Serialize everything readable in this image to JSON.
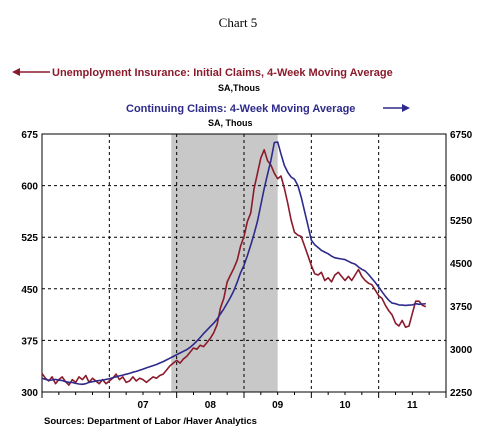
{
  "chart_data": {
    "type": "line",
    "title": "Chart 5",
    "x_tick_labels": [
      "07",
      "08",
      "09",
      "10",
      "11"
    ],
    "left_axis": {
      "ticks": [
        300,
        375,
        450,
        525,
        600,
        675
      ],
      "ylim": [
        300,
        675
      ]
    },
    "right_axis": {
      "ticks": [
        2250,
        3000,
        3750,
        4500,
        5250,
        6000,
        6750
      ],
      "ylim": [
        2250,
        6750
      ]
    },
    "recession_shading": {
      "start": 2007.92,
      "end": 2009.5,
      "color": "#c8c8c8"
    },
    "grid": "dashed",
    "source": "Sources:  Department of Labor /Haver Analytics",
    "series": [
      {
        "name": "Unemployment Insurance: Initial Claims, 4-Week Moving Average",
        "unit": "SA,Thous",
        "axis": "left",
        "arrow": "left",
        "color": "#8b1a2b",
        "points": [
          [
            2006.0,
            327
          ],
          [
            2006.05,
            320
          ],
          [
            2006.1,
            316
          ],
          [
            2006.15,
            322
          ],
          [
            2006.2,
            312
          ],
          [
            2006.25,
            318
          ],
          [
            2006.3,
            322
          ],
          [
            2006.35,
            315
          ],
          [
            2006.4,
            310
          ],
          [
            2006.45,
            318
          ],
          [
            2006.5,
            314
          ],
          [
            2006.55,
            322
          ],
          [
            2006.6,
            318
          ],
          [
            2006.65,
            324
          ],
          [
            2006.7,
            314
          ],
          [
            2006.75,
            320
          ],
          [
            2006.8,
            316
          ],
          [
            2006.85,
            312
          ],
          [
            2006.9,
            318
          ],
          [
            2006.95,
            312
          ],
          [
            2007.0,
            316
          ],
          [
            2007.05,
            320
          ],
          [
            2007.1,
            326
          ],
          [
            2007.15,
            318
          ],
          [
            2007.2,
            322
          ],
          [
            2007.25,
            314
          ],
          [
            2007.3,
            316
          ],
          [
            2007.35,
            322
          ],
          [
            2007.4,
            316
          ],
          [
            2007.45,
            320
          ],
          [
            2007.5,
            318
          ],
          [
            2007.55,
            314
          ],
          [
            2007.6,
            318
          ],
          [
            2007.65,
            322
          ],
          [
            2007.7,
            320
          ],
          [
            2007.75,
            324
          ],
          [
            2007.8,
            326
          ],
          [
            2007.85,
            332
          ],
          [
            2007.9,
            338
          ],
          [
            2007.95,
            342
          ],
          [
            2008.0,
            346
          ],
          [
            2008.05,
            342
          ],
          [
            2008.1,
            348
          ],
          [
            2008.15,
            352
          ],
          [
            2008.2,
            358
          ],
          [
            2008.25,
            364
          ],
          [
            2008.3,
            362
          ],
          [
            2008.35,
            368
          ],
          [
            2008.4,
            366
          ],
          [
            2008.45,
            372
          ],
          [
            2008.5,
            378
          ],
          [
            2008.55,
            386
          ],
          [
            2008.6,
            398
          ],
          [
            2008.65,
            422
          ],
          [
            2008.7,
            436
          ],
          [
            2008.75,
            460
          ],
          [
            2008.8,
            470
          ],
          [
            2008.85,
            480
          ],
          [
            2008.9,
            492
          ],
          [
            2008.95,
            512
          ],
          [
            2009.0,
            526
          ],
          [
            2009.05,
            548
          ],
          [
            2009.1,
            560
          ],
          [
            2009.15,
            596
          ],
          [
            2009.2,
            618
          ],
          [
            2009.25,
            640
          ],
          [
            2009.3,
            652
          ],
          [
            2009.35,
            636
          ],
          [
            2009.4,
            630
          ],
          [
            2009.45,
            618
          ],
          [
            2009.5,
            610
          ],
          [
            2009.55,
            614
          ],
          [
            2009.6,
            596
          ],
          [
            2009.65,
            574
          ],
          [
            2009.7,
            550
          ],
          [
            2009.75,
            532
          ],
          [
            2009.8,
            528
          ],
          [
            2009.85,
            526
          ],
          [
            2009.9,
            512
          ],
          [
            2009.95,
            498
          ],
          [
            2010.0,
            484
          ],
          [
            2010.05,
            472
          ],
          [
            2010.1,
            470
          ],
          [
            2010.15,
            474
          ],
          [
            2010.2,
            462
          ],
          [
            2010.25,
            466
          ],
          [
            2010.3,
            460
          ],
          [
            2010.35,
            470
          ],
          [
            2010.4,
            474
          ],
          [
            2010.45,
            468
          ],
          [
            2010.5,
            462
          ],
          [
            2010.55,
            468
          ],
          [
            2010.6,
            462
          ],
          [
            2010.65,
            470
          ],
          [
            2010.7,
            478
          ],
          [
            2010.75,
            468
          ],
          [
            2010.8,
            462
          ],
          [
            2010.85,
            458
          ],
          [
            2010.9,
            456
          ],
          [
            2010.95,
            448
          ],
          [
            2011.0,
            440
          ],
          [
            2011.05,
            436
          ],
          [
            2011.1,
            426
          ],
          [
            2011.15,
            418
          ],
          [
            2011.2,
            412
          ],
          [
            2011.25,
            400
          ],
          [
            2011.3,
            396
          ],
          [
            2011.35,
            404
          ],
          [
            2011.4,
            394
          ],
          [
            2011.45,
            396
          ],
          [
            2011.5,
            414
          ],
          [
            2011.55,
            432
          ],
          [
            2011.6,
            432
          ],
          [
            2011.65,
            426
          ],
          [
            2011.7,
            424
          ]
        ]
      },
      {
        "name": "Continuing Claims: 4-Week Moving Average",
        "unit": "SA, Thous",
        "axis": "right",
        "arrow": "right",
        "color": "#2e2a8c",
        "points": [
          [
            2006.0,
            2490
          ],
          [
            2006.05,
            2470
          ],
          [
            2006.1,
            2455
          ],
          [
            2006.15,
            2460
          ],
          [
            2006.2,
            2470
          ],
          [
            2006.25,
            2455
          ],
          [
            2006.3,
            2450
          ],
          [
            2006.35,
            2430
          ],
          [
            2006.4,
            2420
          ],
          [
            2006.45,
            2415
          ],
          [
            2006.5,
            2400
          ],
          [
            2006.55,
            2390
          ],
          [
            2006.6,
            2385
          ],
          [
            2006.65,
            2395
          ],
          [
            2006.7,
            2420
          ],
          [
            2006.75,
            2430
          ],
          [
            2006.8,
            2440
          ],
          [
            2006.85,
            2450
          ],
          [
            2006.9,
            2455
          ],
          [
            2006.95,
            2470
          ],
          [
            2007.0,
            2480
          ],
          [
            2007.05,
            2500
          ],
          [
            2007.1,
            2515
          ],
          [
            2007.15,
            2530
          ],
          [
            2007.2,
            2545
          ],
          [
            2007.25,
            2560
          ],
          [
            2007.3,
            2575
          ],
          [
            2007.35,
            2595
          ],
          [
            2007.4,
            2610
          ],
          [
            2007.45,
            2630
          ],
          [
            2007.5,
            2650
          ],
          [
            2007.55,
            2670
          ],
          [
            2007.6,
            2690
          ],
          [
            2007.65,
            2710
          ],
          [
            2007.7,
            2730
          ],
          [
            2007.75,
            2755
          ],
          [
            2007.8,
            2780
          ],
          [
            2007.85,
            2810
          ],
          [
            2007.9,
            2840
          ],
          [
            2007.95,
            2870
          ],
          [
            2008.0,
            2900
          ],
          [
            2008.05,
            2930
          ],
          [
            2008.1,
            2960
          ],
          [
            2008.15,
            2990
          ],
          [
            2008.2,
            3030
          ],
          [
            2008.25,
            3080
          ],
          [
            2008.3,
            3140
          ],
          [
            2008.35,
            3200
          ],
          [
            2008.4,
            3270
          ],
          [
            2008.45,
            3330
          ],
          [
            2008.5,
            3390
          ],
          [
            2008.55,
            3450
          ],
          [
            2008.6,
            3520
          ],
          [
            2008.65,
            3610
          ],
          [
            2008.7,
            3700
          ],
          [
            2008.75,
            3800
          ],
          [
            2008.8,
            3900
          ],
          [
            2008.85,
            4020
          ],
          [
            2008.9,
            4170
          ],
          [
            2008.95,
            4330
          ],
          [
            2009.0,
            4460
          ],
          [
            2009.05,
            4630
          ],
          [
            2009.1,
            4810
          ],
          [
            2009.15,
            5010
          ],
          [
            2009.2,
            5230
          ],
          [
            2009.25,
            5510
          ],
          [
            2009.3,
            5800
          ],
          [
            2009.35,
            6050
          ],
          [
            2009.4,
            6290
          ],
          [
            2009.45,
            6600
          ],
          [
            2009.5,
            6610
          ],
          [
            2009.55,
            6400
          ],
          [
            2009.6,
            6200
          ],
          [
            2009.65,
            6080
          ],
          [
            2009.7,
            6000
          ],
          [
            2009.75,
            5960
          ],
          [
            2009.8,
            5850
          ],
          [
            2009.85,
            5650
          ],
          [
            2009.9,
            5400
          ],
          [
            2009.95,
            5150
          ],
          [
            2010.0,
            4900
          ],
          [
            2010.05,
            4820
          ],
          [
            2010.1,
            4770
          ],
          [
            2010.15,
            4720
          ],
          [
            2010.2,
            4690
          ],
          [
            2010.25,
            4660
          ],
          [
            2010.3,
            4620
          ],
          [
            2010.35,
            4590
          ],
          [
            2010.4,
            4580
          ],
          [
            2010.45,
            4570
          ],
          [
            2010.5,
            4560
          ],
          [
            2010.55,
            4530
          ],
          [
            2010.6,
            4500
          ],
          [
            2010.65,
            4480
          ],
          [
            2010.7,
            4430
          ],
          [
            2010.75,
            4390
          ],
          [
            2010.8,
            4360
          ],
          [
            2010.85,
            4300
          ],
          [
            2010.9,
            4230
          ],
          [
            2010.95,
            4160
          ],
          [
            2011.0,
            4080
          ],
          [
            2011.05,
            4000
          ],
          [
            2011.1,
            3920
          ],
          [
            2011.15,
            3850
          ],
          [
            2011.2,
            3800
          ],
          [
            2011.25,
            3790
          ],
          [
            2011.3,
            3770
          ],
          [
            2011.35,
            3765
          ],
          [
            2011.4,
            3760
          ],
          [
            2011.45,
            3765
          ],
          [
            2011.5,
            3770
          ],
          [
            2011.55,
            3790
          ],
          [
            2011.6,
            3780
          ],
          [
            2011.65,
            3785
          ],
          [
            2011.7,
            3790
          ]
        ]
      }
    ]
  }
}
